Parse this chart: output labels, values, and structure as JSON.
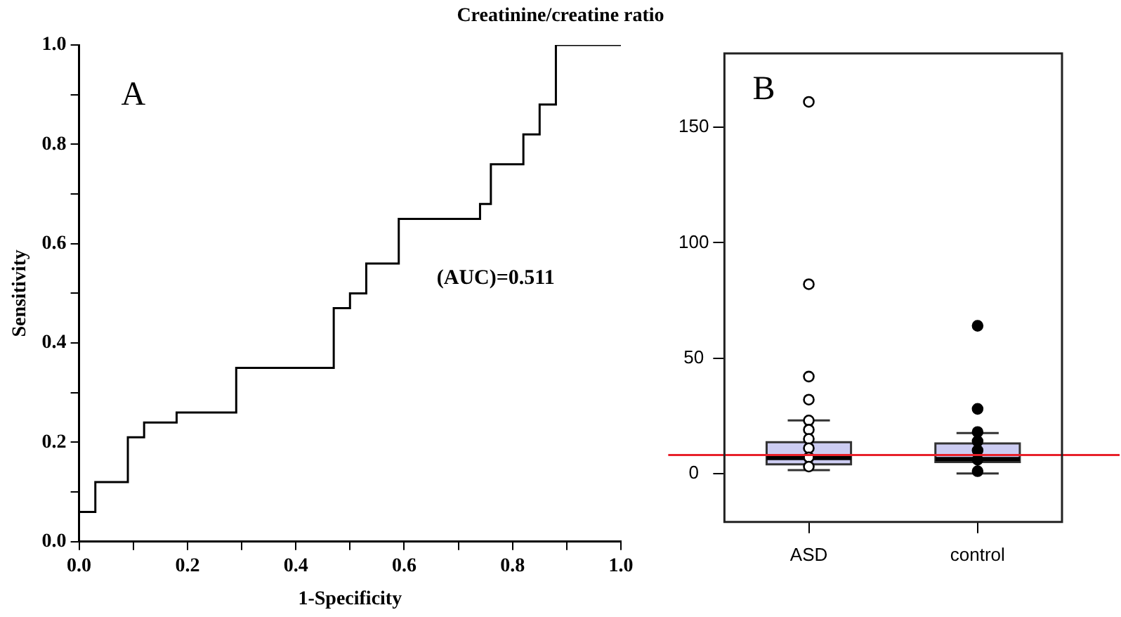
{
  "chart_data": [
    {
      "type": "step",
      "title": "Creatinine/creatine ratio",
      "xlabel": "1-Specificity",
      "ylabel": "Sensitivity",
      "color": "#000000",
      "x": [
        0,
        0.03,
        0.09,
        0.12,
        0.18,
        0.29,
        0.47,
        0.5,
        0.53,
        0.59,
        0.74,
        0.76,
        0.82,
        0.85,
        0.88,
        1
      ],
      "values": [
        0.06,
        0.12,
        0.21,
        0.24,
        0.26,
        0.35,
        0.47,
        0.5,
        0.56,
        0.65,
        0.68,
        0.76,
        0.82,
        0.88,
        1,
        1
      ],
      "xlim": [
        0,
        1
      ],
      "ylim": [
        0,
        1
      ],
      "xticks": [
        {
          "value": 0,
          "label": "0.0"
        },
        {
          "value": 0.1,
          "label": null
        },
        {
          "value": 0.2,
          "label": "0.2"
        },
        {
          "value": 0.3,
          "label": null
        },
        {
          "value": 0.4,
          "label": "0.4"
        },
        {
          "value": 0.5,
          "label": null
        },
        {
          "value": 0.6,
          "label": "0.6"
        },
        {
          "value": 0.7,
          "label": null
        },
        {
          "value": 0.8,
          "label": "0.8"
        },
        {
          "value": 0.9,
          "label": null
        },
        {
          "value": 1,
          "label": "1.0"
        }
      ],
      "yticks": [
        {
          "value": 0,
          "label": "0.0"
        },
        {
          "value": 0.1,
          "label": null
        },
        {
          "value": 0.2,
          "label": "0.2"
        },
        {
          "value": 0.3,
          "label": null
        },
        {
          "value": 0.4,
          "label": "0.4"
        },
        {
          "value": 0.5,
          "label": null
        },
        {
          "value": 0.6,
          "label": "0.6"
        },
        {
          "value": 0.7,
          "label": null
        },
        {
          "value": 0.8,
          "label": "0.8"
        },
        {
          "value": 0.9,
          "label": null
        },
        {
          "value": 1,
          "label": "1.0"
        }
      ],
      "grid": false,
      "annotations": [
        "A",
        "(AUC)=0.511"
      ]
    },
    {
      "type": "box",
      "categories": [
        "ASD",
        "control"
      ],
      "color": "#ccccf2",
      "boxes": [
        {
          "low": 1.5,
          "q1": 4,
          "median": 6.7,
          "q3": 13.6,
          "high": 23
        },
        {
          "low": 0,
          "q1": 5,
          "median": 6.3,
          "q3": 13,
          "high": 17.5
        }
      ],
      "series": [
        {
          "type": "scatter",
          "x": [
            "ASD",
            "ASD",
            "ASD",
            "ASD",
            "ASD",
            "ASD",
            "ASD",
            "ASD",
            "ASD",
            "ASD",
            "control",
            "control",
            "control",
            "control",
            "control",
            "control",
            "control"
          ],
          "values": [
            161,
            82,
            42,
            32,
            23,
            19,
            15,
            11,
            7,
            3,
            64,
            28,
            18,
            14,
            10,
            6,
            1
          ],
          "colors": [
            "#ffffff",
            "#ffffff",
            "#ffffff",
            "#ffffff",
            "#ffffff",
            "#ffffff",
            "#ffffff",
            "#ffffff",
            "#ffffff",
            "#ffffff",
            "#000000",
            "#000000",
            "#000000",
            "#000000",
            "#000000",
            "#000000",
            "#000000"
          ]
        }
      ],
      "marker": "circle",
      "ylim": [
        -21,
        182
      ],
      "yticks": [
        0,
        50,
        100,
        150
      ],
      "ref_lines": [
        {
          "axis": "y",
          "value": 8,
          "color": "#e8202a"
        }
      ],
      "grid": false,
      "annotations": [
        "B"
      ]
    }
  ]
}
